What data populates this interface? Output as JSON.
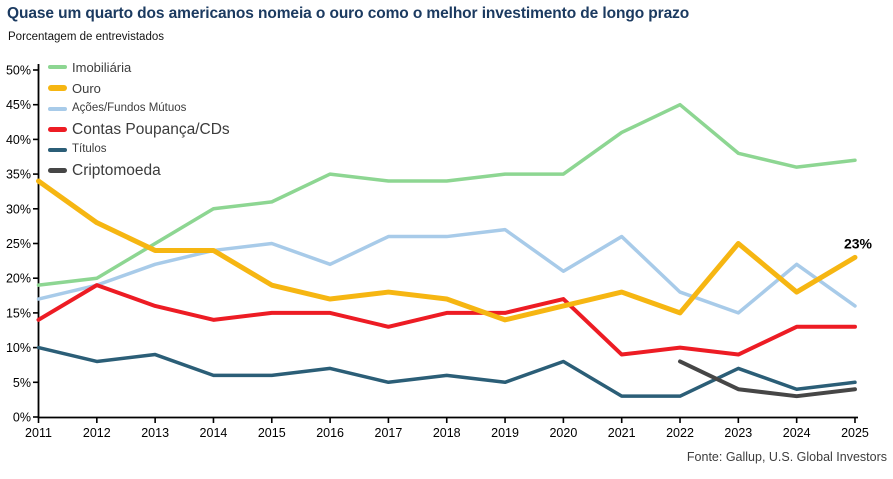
{
  "title": "Quase um quarto dos americanos nomeia o ouro como o melhor investimento de longo prazo",
  "subtitle": "Porcentagem de entrevistados",
  "footer": "Fonte: Gallup, U.S. Global Investors",
  "colors": {
    "title_navy": "#1b3a60",
    "axis_black": "#000000",
    "legend_text": "#3c3c3c",
    "source_text": "#3d3d3d"
  },
  "chart_data": {
    "type": "line",
    "title": "Quase um quarto dos americanos nomeia o ouro como o melhor investimento de longo prazo",
    "ylabel": "Porcentagem de entrevistados",
    "x": [
      2011,
      2012,
      2013,
      2014,
      2015,
      2016,
      2017,
      2018,
      2019,
      2020,
      2021,
      2022,
      2023,
      2024,
      2025
    ],
    "xtick_labels": [
      "2011",
      "2012",
      "2013",
      "2014",
      "2015",
      "2016",
      "2017",
      "2018",
      "2019",
      "2020",
      "2021",
      "2022",
      "2023",
      "2024",
      "2025"
    ],
    "ylim": [
      0,
      50
    ],
    "ytick_step": 5,
    "ytick_labels": [
      "0%",
      "5%",
      "10%",
      "15%",
      "20%",
      "25%",
      "30%",
      "35%",
      "40%",
      "45%",
      "50%"
    ],
    "grid": false,
    "legend_position": "top-left",
    "series": [
      {
        "name": "Imobiliária",
        "color": "#8dd692",
        "width": 3.5,
        "label_size": "md",
        "values": [
          19,
          20,
          25,
          30,
          31,
          35,
          34,
          34,
          35,
          35,
          41,
          45,
          38,
          36,
          37
        ]
      },
      {
        "name": "Ouro",
        "color": "#f6b612",
        "width": 5,
        "label_size": "md",
        "values": [
          34,
          28,
          24,
          24,
          19,
          17,
          18,
          17,
          14,
          16,
          18,
          15,
          25,
          18,
          23
        ]
      },
      {
        "name": "Ações/Fundos Mútuos",
        "color": "#a8cbe9",
        "width": 3.5,
        "label_size": "sm",
        "values": [
          17,
          19,
          22,
          24,
          25,
          22,
          26,
          26,
          27,
          21,
          26,
          18,
          15,
          22,
          16
        ]
      },
      {
        "name": "Contas Poupança/CDs",
        "color": "#ed1c24",
        "width": 4,
        "label_size": "lg",
        "values": [
          14,
          19,
          16,
          14,
          15,
          15,
          13,
          15,
          15,
          17,
          9,
          10,
          9,
          13,
          13
        ]
      },
      {
        "name": "Títulos",
        "color": "#2b5e77",
        "width": 3.5,
        "label_size": "sm",
        "values": [
          10,
          8,
          9,
          6,
          6,
          7,
          5,
          6,
          5,
          8,
          3,
          3,
          7,
          4,
          5
        ]
      },
      {
        "name": "Criptomoeda",
        "color": "#464646",
        "width": 4,
        "label_size": "lg",
        "values": [
          null,
          null,
          null,
          null,
          null,
          null,
          null,
          null,
          null,
          null,
          null,
          8,
          4,
          3,
          4
        ]
      }
    ],
    "annotation": {
      "text": "23%",
      "series": "Ouro",
      "x": 2025,
      "y": 23
    }
  }
}
